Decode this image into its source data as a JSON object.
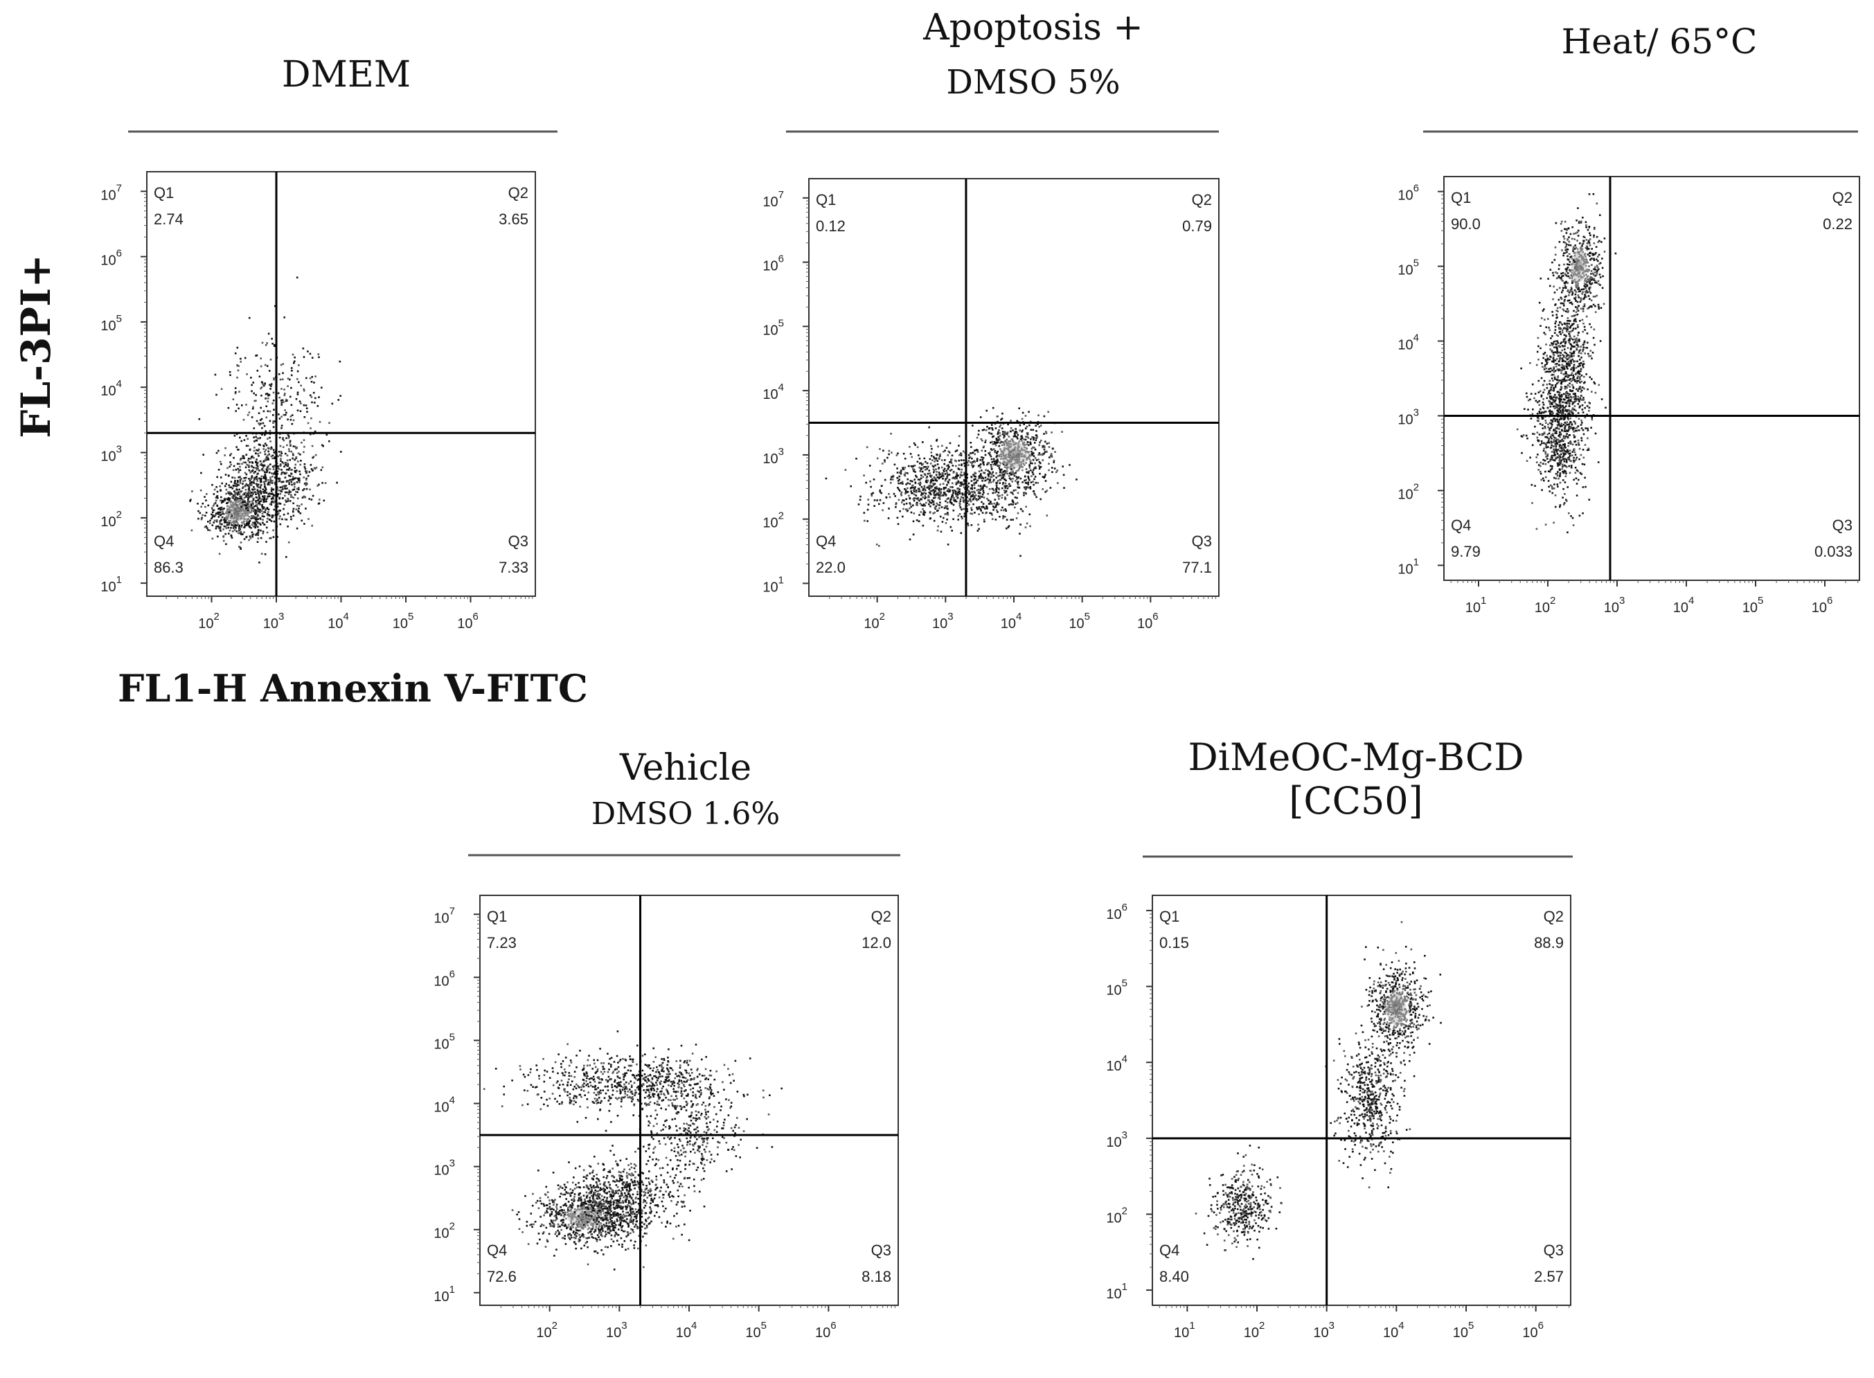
{
  "figure": {
    "y_axis_label": "FL-3PI+",
    "x_axis_label": "FL1-H Annexin V-FITC"
  },
  "chart_data": [
    {
      "type": "scatter",
      "title": [
        "DMEM"
      ],
      "xlabel": "FL1-H Annexin V-FITC",
      "ylabel": "FL-3PI+",
      "x_range_log10": [
        1,
        7
      ],
      "y_range_log10": [
        0.8,
        7.3
      ],
      "x_ticks": [
        2,
        3,
        4,
        5,
        6
      ],
      "y_ticks": [
        1,
        2,
        3,
        4,
        5,
        6,
        7
      ],
      "gate_x_log10": 3.0,
      "gate_y_log10": 3.3,
      "quadrants": [
        {
          "name": "Q1",
          "value": "2.74"
        },
        {
          "name": "Q2",
          "value": "3.65"
        },
        {
          "name": "Q3",
          "value": "7.33"
        },
        {
          "name": "Q4",
          "value": "86.3"
        }
      ],
      "populations": [
        {
          "x": 2.4,
          "y": 2.1,
          "sx": 0.25,
          "sy": 0.22,
          "n": 650,
          "dense": true
        },
        {
          "x": 2.9,
          "y": 2.6,
          "sx": 0.35,
          "sy": 0.35,
          "n": 700
        },
        {
          "x": 3.0,
          "y": 3.8,
          "sx": 0.4,
          "sy": 0.5,
          "n": 260
        }
      ]
    },
    {
      "type": "scatter",
      "title": [
        "Apoptosis +",
        "DMSO 5%"
      ],
      "xlabel": "FL1-H Annexin V-FITC",
      "ylabel": "FL-3PI+",
      "x_range_log10": [
        1,
        7
      ],
      "y_range_log10": [
        0.8,
        7.3
      ],
      "x_ticks": [
        2,
        3,
        4,
        5,
        6
      ],
      "y_ticks": [
        1,
        2,
        3,
        4,
        5,
        6,
        7
      ],
      "gate_x_log10": 3.3,
      "gate_y_log10": 3.5,
      "quadrants": [
        {
          "name": "Q1",
          "value": "0.12"
        },
        {
          "name": "Q2",
          "value": "0.79"
        },
        {
          "name": "Q3",
          "value": "77.1"
        },
        {
          "name": "Q4",
          "value": "22.0"
        }
      ],
      "populations": [
        {
          "x": 3.0,
          "y": 2.5,
          "sx": 0.55,
          "sy": 0.3,
          "n": 1000
        },
        {
          "x": 4.0,
          "y": 3.0,
          "sx": 0.28,
          "sy": 0.3,
          "n": 650,
          "dense": true
        }
      ]
    },
    {
      "type": "scatter",
      "title": [
        "Heat/ 65°C"
      ],
      "xlabel": "FL1-H Annexin V-FITC",
      "ylabel": "FL-3PI+",
      "x_range_log10": [
        0.5,
        6.5
      ],
      "y_range_log10": [
        0.8,
        6.2
      ],
      "x_ticks": [
        1,
        2,
        3,
        4,
        5,
        6
      ],
      "y_ticks": [
        1,
        2,
        3,
        4,
        5,
        6
      ],
      "gate_x_log10": 2.9,
      "gate_y_log10": 3.0,
      "quadrants": [
        {
          "name": "Q1",
          "value": "90.0"
        },
        {
          "name": "Q2",
          "value": "0.22"
        },
        {
          "name": "Q3",
          "value": "0.033"
        },
        {
          "name": "Q4",
          "value": "9.79"
        }
      ],
      "populations": [
        {
          "x": 2.45,
          "y": 5.0,
          "sx": 0.16,
          "sy": 0.3,
          "n": 450,
          "dense": true
        },
        {
          "x": 2.25,
          "y": 3.7,
          "sx": 0.18,
          "sy": 0.55,
          "n": 700
        },
        {
          "x": 2.15,
          "y": 2.8,
          "sx": 0.2,
          "sy": 0.45,
          "n": 650
        }
      ]
    },
    {
      "type": "scatter",
      "title": [
        "Vehicle",
        "DMSO 1.6%"
      ],
      "xlabel": "FL1-H Annexin V-FITC",
      "ylabel": "FL-3PI+",
      "x_range_log10": [
        1,
        7
      ],
      "y_range_log10": [
        0.8,
        7.3
      ],
      "x_ticks": [
        2,
        3,
        4,
        5,
        6
      ],
      "y_ticks": [
        1,
        2,
        3,
        4,
        5,
        6,
        7
      ],
      "gate_x_log10": 3.3,
      "gate_y_log10": 3.5,
      "quadrants": [
        {
          "name": "Q1",
          "value": "7.23"
        },
        {
          "name": "Q2",
          "value": "12.0"
        },
        {
          "name": "Q3",
          "value": "8.18"
        },
        {
          "name": "Q4",
          "value": "72.6"
        }
      ],
      "populations": [
        {
          "x": 2.5,
          "y": 2.2,
          "sx": 0.35,
          "sy": 0.22,
          "n": 700,
          "dense": true
        },
        {
          "x": 3.0,
          "y": 2.5,
          "sx": 0.35,
          "sy": 0.3,
          "n": 700
        },
        {
          "x": 3.1,
          "y": 4.35,
          "sx": 0.7,
          "sy": 0.22,
          "n": 650
        },
        {
          "x": 4.0,
          "y": 3.6,
          "sx": 0.35,
          "sy": 0.5,
          "n": 400
        }
      ]
    },
    {
      "type": "scatter",
      "title": [
        "DiMeOC-Mg-BCD",
        "[CC50]"
      ],
      "xlabel": "FL1-H Annexin V-FITC",
      "ylabel": "FL-3PI+",
      "x_range_log10": [
        0.5,
        6.5
      ],
      "y_range_log10": [
        0.8,
        6.2
      ],
      "x_ticks": [
        1,
        2,
        3,
        4,
        5,
        6
      ],
      "y_ticks": [
        1,
        2,
        3,
        4,
        5,
        6
      ],
      "gate_x_log10": 3.0,
      "gate_y_log10": 3.0,
      "quadrants": [
        {
          "name": "Q1",
          "value": "0.15"
        },
        {
          "name": "Q2",
          "value": "88.9"
        },
        {
          "name": "Q3",
          "value": "2.57"
        },
        {
          "name": "Q4",
          "value": "8.40"
        }
      ],
      "populations": [
        {
          "x": 1.8,
          "y": 2.1,
          "sx": 0.22,
          "sy": 0.25,
          "n": 380
        },
        {
          "x": 3.6,
          "y": 3.5,
          "sx": 0.22,
          "sy": 0.4,
          "n": 500
        },
        {
          "x": 4.0,
          "y": 4.7,
          "sx": 0.2,
          "sy": 0.3,
          "n": 600,
          "dense": true
        }
      ]
    }
  ]
}
